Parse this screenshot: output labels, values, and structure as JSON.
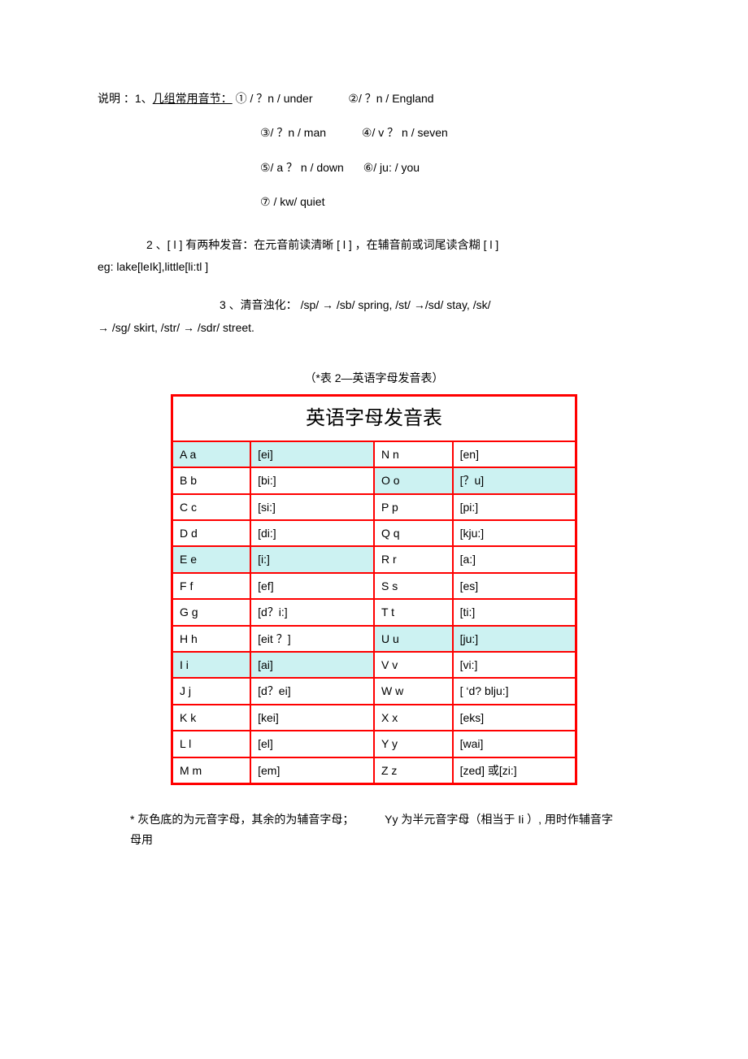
{
  "explain": {
    "prefix": "说明 ：1、",
    "group_label": "几组常用音节：",
    "syll1": "①  /   ？n /  under",
    "syll2": "②/  ？n /  England",
    "syll3": "③/  ？n /  man",
    "syll4": "④/ v ？ n /  seven",
    "syll5": "⑤/ a ？ n /  down",
    "syll6": "⑥/ ju: /  you",
    "syll7": "⑦ / kw/  quiet"
  },
  "point2": {
    "line1_a": "2   、[ l ]  有两种发音：在元音前读清晰   [ l ] ，在辅音前或词尾读含糊   [ l ]",
    "line1_b": "eg: lake[leIk],little[li:tl ]"
  },
  "point3": {
    "line_a": "3 、清音浊化：   /sp/   → /sb/ spring, /st/       →/sd/ stay, /sk/",
    "line_b": "→  /sg/ skirt,           /str/                       →  /sdr/ street."
  },
  "table": {
    "caption": "（*表 2—英语字母发音表）",
    "title": "英语字母发音表",
    "colors": {
      "border": "#ff0000",
      "vowel_bg": "#ccf2f2",
      "normal_bg": "#ffffff"
    },
    "rows": [
      {
        "l1": "A   a",
        "p1": "[ei]",
        "v1": true,
        "l2": "N   n",
        "p2": "[en]",
        "v2": false
      },
      {
        "l1": "B   b",
        "p1": "[bi:]",
        "v1": false,
        "l2": "O   o",
        "p2": "[？u]",
        "v2": true
      },
      {
        "l1": "C   c",
        "p1": "[si:]",
        "v1": false,
        "l2": "P   p",
        "p2": "[pi:]",
        "v2": false
      },
      {
        "l1": "D   d",
        "p1": "[di:]",
        "v1": false,
        "l2": "Q   q",
        "p2": "[kju:]",
        "v2": false
      },
      {
        "l1": "E   e",
        "p1": "[i:]",
        "v1": true,
        "l2": "R   r",
        "p2": "[a:]",
        "v2": false
      },
      {
        "l1": "F   f",
        "p1": "[ef]",
        "v1": false,
        "l2": "S   s",
        "p2": "[es]",
        "v2": false
      },
      {
        "l1": "G   g",
        "p1": "[d？i:]",
        "v1": false,
        "l2": "T   t",
        "p2": "[ti:]",
        "v2": false
      },
      {
        "l1": "H   h",
        "p1": "[eit  ？]",
        "v1": false,
        "l2": "U   u",
        "p2": "[ju:]",
        "v2": true
      },
      {
        "l1": "I   i",
        "p1": "[ai]",
        "v1": true,
        "l2": "V   v",
        "p2": "[vi:]",
        "v2": false
      },
      {
        "l1": "J   j",
        "p1": "[d？ei]",
        "v1": false,
        "l2": "W   w",
        "p2": "[ ‘d? blju:]",
        "v2": false
      },
      {
        "l1": "K   k",
        "p1": "[kei]",
        "v1": false,
        "l2": "X   x",
        "p2": "[eks]",
        "v2": false
      },
      {
        "l1": "L   l",
        "p1": "[el]",
        "v1": false,
        "l2": "Y   y",
        "p2": "[wai]",
        "v2": false
      },
      {
        "l1": "M   m",
        "p1": "[em]",
        "v1": false,
        "l2": "Z   z",
        "p2": "[zed] 或[zi:]",
        "v2": false
      }
    ]
  },
  "footnote": {
    "part1": "* 灰色底的为元音字母，其余的为辅音字母；",
    "part2": "Yy 为半元音字母（相当于   Ii  ）, 用时作辅音字母用"
  }
}
